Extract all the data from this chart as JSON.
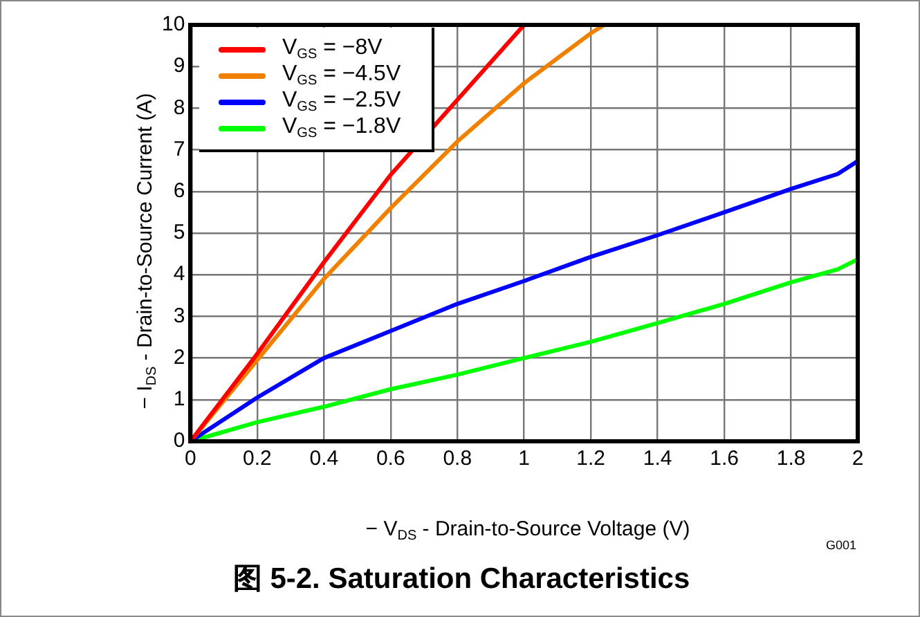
{
  "chart_data": {
    "type": "line",
    "title": "图 5-2. Saturation Characteristics",
    "xlabel": "− V$_{DS}$ - Drain-to-Source Voltage (V)",
    "ylabel": "− I$_{DS}$ - Drain-to-Source Current (A)",
    "annotations": [
      "G001"
    ],
    "xlim": [
      0,
      2
    ],
    "xticks": [
      0,
      0.2,
      0.4,
      0.6,
      0.8,
      1,
      1.2,
      1.4,
      1.6,
      1.8,
      2
    ],
    "ylim": [
      0,
      10
    ],
    "yticks": [
      0,
      1,
      2,
      3,
      4,
      5,
      6,
      7,
      8,
      9,
      10
    ],
    "grid": true,
    "legend": "top left",
    "marker": "none",
    "line_style": "solid",
    "series": [
      {
        "name": "V$_{GS}$ = −8V",
        "color": "#ff0000",
        "x": [
          0,
          0.2,
          0.4,
          0.6,
          0.8,
          1
        ],
        "values": [
          0,
          2.1,
          4.3,
          6.4,
          8.2,
          10
        ]
      },
      {
        "name": "V$_{GS}$ = −4.5V",
        "color": "#f08000",
        "x": [
          0,
          0.2,
          0.4,
          0.6,
          0.8,
          1,
          1.2,
          1.24
        ],
        "values": [
          0,
          1.95,
          3.9,
          5.6,
          7.2,
          8.6,
          9.8,
          10
        ]
      },
      {
        "name": "V$_{GS}$ = −2.5V",
        "color": "#0000ff",
        "x": [
          0,
          0.2,
          0.4,
          0.6,
          0.8,
          1,
          1.2,
          1.4,
          1.6,
          1.8,
          1.94,
          2
        ],
        "values": [
          0,
          1.05,
          2,
          2.65,
          3.3,
          3.85,
          4.43,
          4.95,
          5.5,
          6.06,
          6.42,
          6.73
        ]
      },
      {
        "name": "V$_{GS}$ = −1.8V",
        "color": "#00ff00",
        "x": [
          0,
          0.2,
          0.4,
          0.6,
          0.8,
          1,
          1.2,
          1.4,
          1.6,
          1.8,
          1.94,
          2
        ],
        "values": [
          0,
          0.46,
          0.83,
          1.25,
          1.6,
          2,
          2.39,
          2.84,
          3.3,
          3.82,
          4.13,
          4.37
        ]
      }
    ]
  }
}
